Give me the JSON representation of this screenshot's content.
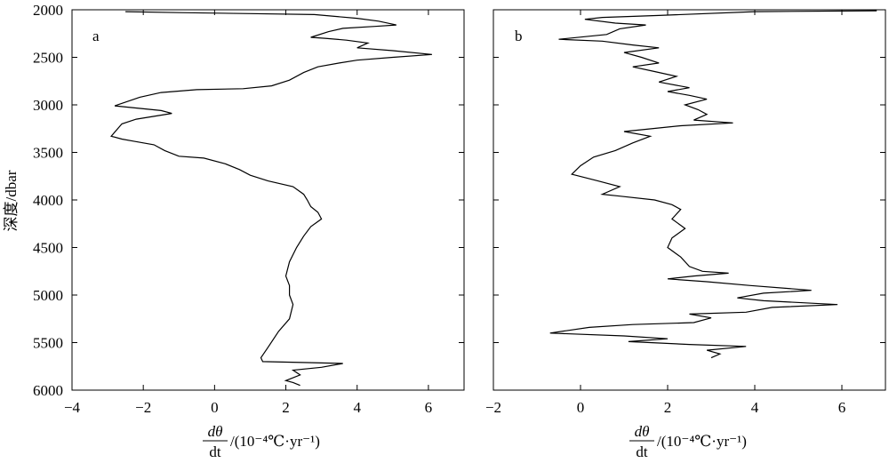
{
  "chart_data": {
    "type": "line",
    "ylabel": "深度/dbar",
    "xlabel_fraction": {
      "numerator": "dθ",
      "denominator": "dt"
    },
    "xlabel_unit": "/(10⁻⁴℃·yr⁻¹)",
    "ylim": [
      6000,
      2000
    ],
    "yticks": [
      "2000",
      "2500",
      "3000",
      "3500",
      "4000",
      "4500",
      "5000",
      "5500",
      "6000"
    ],
    "panels": [
      {
        "label": "a",
        "xlim": [
          -4,
          7
        ],
        "xticks": [
          "−4",
          "−2",
          "0",
          "2",
          "4",
          "6"
        ],
        "points": [
          [
            -2.5,
            2020
          ],
          [
            -1.0,
            2030
          ],
          [
            1.0,
            2040
          ],
          [
            2.8,
            2050
          ],
          [
            4.0,
            2090
          ],
          [
            4.6,
            2120
          ],
          [
            5.1,
            2160
          ],
          [
            4.5,
            2175
          ],
          [
            3.6,
            2195
          ],
          [
            3.2,
            2230
          ],
          [
            2.7,
            2290
          ],
          [
            3.1,
            2300
          ],
          [
            3.7,
            2320
          ],
          [
            4.3,
            2350
          ],
          [
            4.0,
            2400
          ],
          [
            5.0,
            2430
          ],
          [
            6.1,
            2470
          ],
          [
            5.0,
            2500
          ],
          [
            4.0,
            2530
          ],
          [
            3.5,
            2560
          ],
          [
            2.9,
            2600
          ],
          [
            2.5,
            2660
          ],
          [
            2.1,
            2740
          ],
          [
            1.6,
            2800
          ],
          [
            0.8,
            2830
          ],
          [
            -0.5,
            2840
          ],
          [
            -1.5,
            2870
          ],
          [
            -2.1,
            2920
          ],
          [
            -2.8,
            3010
          ],
          [
            -1.5,
            3060
          ],
          [
            -1.2,
            3090
          ],
          [
            -2.2,
            3150
          ],
          [
            -2.6,
            3200
          ],
          [
            -2.9,
            3330
          ],
          [
            -2.6,
            3360
          ],
          [
            -2.3,
            3380
          ],
          [
            -1.7,
            3420
          ],
          [
            -1.4,
            3480
          ],
          [
            -1.0,
            3540
          ],
          [
            -0.3,
            3560
          ],
          [
            0.3,
            3620
          ],
          [
            0.7,
            3680
          ],
          [
            1.0,
            3740
          ],
          [
            1.5,
            3800
          ],
          [
            2.2,
            3860
          ],
          [
            2.5,
            3940
          ],
          [
            2.6,
            4000
          ],
          [
            2.7,
            4070
          ],
          [
            2.9,
            4130
          ],
          [
            3.0,
            4200
          ],
          [
            2.7,
            4280
          ],
          [
            2.5,
            4380
          ],
          [
            2.3,
            4500
          ],
          [
            2.1,
            4650
          ],
          [
            2.0,
            4800
          ],
          [
            2.1,
            4900
          ],
          [
            2.1,
            5000
          ],
          [
            2.2,
            5100
          ],
          [
            2.1,
            5250
          ],
          [
            1.8,
            5380
          ],
          [
            1.5,
            5550
          ],
          [
            1.3,
            5660
          ],
          [
            1.35,
            5700
          ],
          [
            2.6,
            5710
          ],
          [
            3.6,
            5720
          ],
          [
            3.0,
            5760
          ],
          [
            2.2,
            5790
          ],
          [
            2.4,
            5840
          ],
          [
            2.0,
            5900
          ],
          [
            2.2,
            5920
          ],
          [
            2.4,
            5950
          ]
        ]
      },
      {
        "label": "b",
        "xlim": [
          -2,
          7
        ],
        "xticks": [
          "−2",
          "0",
          "2",
          "4",
          "6"
        ],
        "points": [
          [
            6.8,
            2010
          ],
          [
            4.0,
            2020
          ],
          [
            1.8,
            2060
          ],
          [
            0.5,
            2080
          ],
          [
            0.1,
            2100
          ],
          [
            0.8,
            2140
          ],
          [
            1.5,
            2160
          ],
          [
            0.9,
            2200
          ],
          [
            0.6,
            2260
          ],
          [
            -0.5,
            2310
          ],
          [
            0.5,
            2330
          ],
          [
            1.2,
            2370
          ],
          [
            1.8,
            2400
          ],
          [
            1.0,
            2450
          ],
          [
            1.4,
            2500
          ],
          [
            1.8,
            2560
          ],
          [
            1.2,
            2600
          ],
          [
            1.7,
            2650
          ],
          [
            2.2,
            2700
          ],
          [
            1.8,
            2760
          ],
          [
            2.5,
            2820
          ],
          [
            2.0,
            2860
          ],
          [
            2.5,
            2900
          ],
          [
            2.9,
            2940
          ],
          [
            2.4,
            3000
          ],
          [
            2.7,
            3050
          ],
          [
            2.9,
            3100
          ],
          [
            2.6,
            3160
          ],
          [
            3.5,
            3190
          ],
          [
            2.3,
            3220
          ],
          [
            1.0,
            3280
          ],
          [
            1.6,
            3330
          ],
          [
            1.2,
            3400
          ],
          [
            0.8,
            3480
          ],
          [
            0.3,
            3550
          ],
          [
            0.0,
            3640
          ],
          [
            -0.2,
            3730
          ],
          [
            0.4,
            3800
          ],
          [
            0.9,
            3860
          ],
          [
            0.5,
            3940
          ],
          [
            0.9,
            3960
          ],
          [
            1.7,
            4000
          ],
          [
            2.1,
            4050
          ],
          [
            2.3,
            4100
          ],
          [
            2.1,
            4200
          ],
          [
            2.4,
            4300
          ],
          [
            2.1,
            4400
          ],
          [
            2.0,
            4500
          ],
          [
            2.3,
            4600
          ],
          [
            2.5,
            4700
          ],
          [
            2.8,
            4750
          ],
          [
            3.4,
            4770
          ],
          [
            2.6,
            4800
          ],
          [
            2.0,
            4830
          ],
          [
            2.9,
            4860
          ],
          [
            3.9,
            4900
          ],
          [
            5.3,
            4950
          ],
          [
            4.2,
            4980
          ],
          [
            3.6,
            5030
          ],
          [
            4.2,
            5060
          ],
          [
            5.9,
            5100
          ],
          [
            4.4,
            5130
          ],
          [
            3.8,
            5180
          ],
          [
            2.5,
            5200
          ],
          [
            3.0,
            5240
          ],
          [
            2.6,
            5290
          ],
          [
            1.2,
            5310
          ],
          [
            0.2,
            5340
          ],
          [
            -0.7,
            5400
          ],
          [
            1.0,
            5430
          ],
          [
            2.0,
            5460
          ],
          [
            1.1,
            5490
          ],
          [
            2.5,
            5520
          ],
          [
            3.8,
            5540
          ],
          [
            2.9,
            5580
          ],
          [
            3.2,
            5620
          ],
          [
            3.0,
            5660
          ]
        ]
      }
    ]
  }
}
